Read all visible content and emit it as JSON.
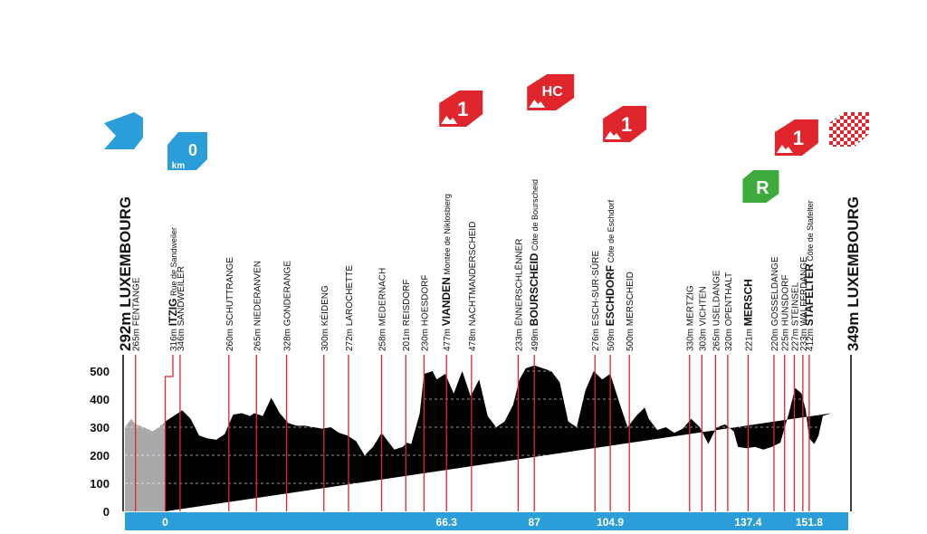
{
  "chart_data": {
    "type": "area",
    "title": "",
    "xlabel": "",
    "ylabel": "",
    "ylim": [
      0,
      550
    ],
    "xlim": [
      -9.5,
      161
    ],
    "y_ticks": [
      "0",
      "100",
      "200",
      "300",
      "400",
      "500"
    ],
    "x_ticks": [
      {
        "km": 0,
        "label": "0"
      },
      {
        "km": 66.3,
        "label": "66.3"
      },
      {
        "km": 87,
        "label": "87"
      },
      {
        "km": 104.9,
        "label": "104.9"
      },
      {
        "km": 137.4,
        "label": "137.4"
      },
      {
        "km": 151.8,
        "label": "151.8"
      }
    ],
    "grid": "horizontal dashed",
    "colors": {
      "profile": "#000000",
      "neutral": "#a9a9a9",
      "axis": "#2b9ed9",
      "marker": "#e1252c",
      "sprint": "#3eaa3b",
      "start": "#2b9ed9"
    },
    "profile": {
      "km": [
        -9.5,
        -8,
        -7,
        -5,
        -3,
        -1.5,
        0,
        2,
        4,
        6,
        8,
        10,
        12,
        14,
        16,
        18,
        20,
        21,
        23,
        25,
        27,
        29,
        31,
        33,
        35,
        37,
        39,
        41,
        43,
        45,
        47,
        49,
        51,
        53,
        54,
        56,
        57,
        58,
        60,
        61,
        63,
        64,
        66,
        68,
        70,
        72,
        74,
        76,
        78,
        80,
        82,
        83.5,
        85,
        86,
        87,
        89,
        91,
        93,
        95,
        97,
        99,
        101,
        103,
        104.9,
        107,
        109,
        111,
        113,
        114,
        116,
        118,
        120,
        122,
        124,
        126,
        128,
        130,
        132,
        134,
        135,
        137,
        139,
        141,
        143,
        145,
        147,
        148.5,
        150,
        151,
        151.8,
        153,
        154,
        155,
        157,
        159,
        161
      ],
      "alt": [
        300,
        330,
        310,
        300,
        285,
        300,
        320,
        340,
        360,
        330,
        270,
        260,
        255,
        275,
        345,
        350,
        340,
        350,
        340,
        405,
        350,
        315,
        305,
        305,
        300,
        295,
        300,
        280,
        270,
        250,
        200,
        230,
        280,
        240,
        220,
        230,
        245,
        240,
        350,
        490,
        500,
        470,
        490,
        420,
        500,
        410,
        470,
        340,
        300,
        320,
        380,
        470,
        510,
        515,
        520,
        510,
        500,
        460,
        320,
        300,
        430,
        500,
        470,
        490,
        390,
        300,
        340,
        370,
        330,
        290,
        300,
        280,
        295,
        330,
        300,
        240,
        300,
        310,
        285,
        230,
        225,
        230,
        220,
        230,
        245,
        350,
        440,
        420,
        360,
        260,
        240,
        270,
        340,
        350
      ]
    },
    "checkpoints": [
      {
        "km": -9.5,
        "alt": "292m",
        "name": "LUXEMBOURG",
        "desc": "",
        "type": "start"
      },
      {
        "km": -7,
        "alt": "265m",
        "name": "FENTANGE",
        "desc": ""
      },
      {
        "km": 0,
        "alt": "316m",
        "name": "ITZIG",
        "desc": "Rue de Sandweiler",
        "type": "km0"
      },
      {
        "km": 3.5,
        "alt": "346m",
        "name": "SANDWEILER",
        "desc": ""
      },
      {
        "km": 15,
        "alt": "260m",
        "name": "SCHUTTRANGE",
        "desc": ""
      },
      {
        "km": 21.5,
        "alt": "265m",
        "name": "NIEDERANVEN",
        "desc": ""
      },
      {
        "km": 28.6,
        "alt": "328m",
        "name": "GONDERANGE",
        "desc": ""
      },
      {
        "km": 37.4,
        "alt": "300m",
        "name": "KÉIDENG",
        "desc": ""
      },
      {
        "km": 43.2,
        "alt": "272m",
        "name": "LAROCHETTE",
        "desc": ""
      },
      {
        "km": 51,
        "alt": "258m",
        "name": "MEDERNACH",
        "desc": ""
      },
      {
        "km": 56.7,
        "alt": "201m",
        "name": "REISDORF",
        "desc": ""
      },
      {
        "km": 61,
        "alt": "230m",
        "name": "HOESDORF",
        "desc": ""
      },
      {
        "km": 66.3,
        "alt": "477m",
        "name": "VIANDEN",
        "desc": "Montée de Niklosbierg",
        "type": "cat1"
      },
      {
        "km": 72.2,
        "alt": "478m",
        "name": "NACHTMANDERSCHEID",
        "desc": ""
      },
      {
        "km": 83.2,
        "alt": "233m",
        "name": "ËNNERSCHLËNNER",
        "desc": ""
      },
      {
        "km": 87,
        "alt": "499m",
        "name": "BOURSCHEID",
        "desc": "Côte de Bourscheid",
        "type": "hc"
      },
      {
        "km": 101.3,
        "alt": "276m",
        "name": "ESCH-SUR-SÛRE",
        "desc": ""
      },
      {
        "km": 104.9,
        "alt": "509m",
        "name": "ESCHDORF",
        "desc": "Côte de Eschdorf",
        "type": "cat1"
      },
      {
        "km": 109.4,
        "alt": "500m",
        "name": "MERSCHEID",
        "desc": ""
      },
      {
        "km": 123.6,
        "alt": "330m",
        "name": "MERTZIG",
        "desc": ""
      },
      {
        "km": 126.5,
        "alt": "303m",
        "name": "VICHTEN",
        "desc": ""
      },
      {
        "km": 129.7,
        "alt": "265m",
        "name": "USELDANGE",
        "desc": ""
      },
      {
        "km": 132.6,
        "alt": "320m",
        "name": "OPENTHALT",
        "desc": ""
      },
      {
        "km": 137.4,
        "alt": "221m",
        "name": "MERSCH",
        "desc": "",
        "type": "sprint"
      },
      {
        "km": 143.5,
        "alt": "220m",
        "name": "GOSSELDANGE",
        "desc": ""
      },
      {
        "km": 146,
        "alt": "225m",
        "name": "HUNSDORF",
        "desc": ""
      },
      {
        "km": 148.3,
        "alt": "227m",
        "name": "STEINSEL",
        "desc": ""
      },
      {
        "km": 150.3,
        "alt": "233m",
        "name": "WALFERDANGE",
        "desc": ""
      },
      {
        "km": 151.8,
        "alt": "412m",
        "name": "STAFELTER",
        "desc": "Côte de Stafelter",
        "type": "cat1"
      },
      {
        "km": 161,
        "alt": "349m",
        "name": "LUXEMBOURG",
        "desc": "",
        "type": "finish"
      }
    ],
    "badges": {
      "km0": "0",
      "km0_unit": "km",
      "cat1": "1",
      "hc": "HC",
      "sprint": "R"
    }
  }
}
